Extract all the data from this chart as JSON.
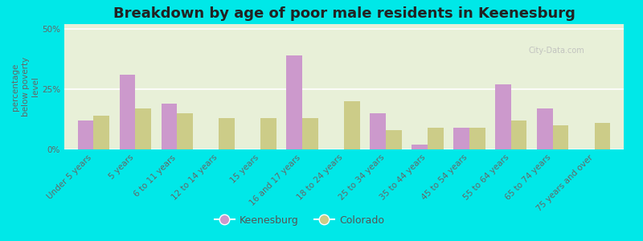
{
  "title": "Breakdown by age of poor male residents in Keenesburg",
  "ylabel": "percentage\nbelow poverty\nlevel",
  "categories": [
    "Under 5 years",
    "5 years",
    "6 to 11 years",
    "12 to 14 years",
    "15 years",
    "16 and 17 years",
    "18 to 24 years",
    "25 to 34 years",
    "35 to 44 years",
    "45 to 54 years",
    "55 to 64 years",
    "65 to 74 years",
    "75 years and over"
  ],
  "keenesburg": [
    12,
    31,
    19,
    0,
    0,
    39,
    0,
    15,
    2,
    9,
    27,
    17,
    0
  ],
  "colorado": [
    14,
    17,
    15,
    13,
    13,
    13,
    20,
    8,
    9,
    9,
    12,
    10,
    11
  ],
  "keenesburg_color": "#cc99cc",
  "colorado_color": "#cccc88",
  "outer_bg": "#00e8e8",
  "plot_bg_color": "#e8f0d8",
  "ylim": [
    0,
    52
  ],
  "yticks": [
    0,
    25,
    50
  ],
  "ytick_labels": [
    "0%",
    "25%",
    "50%"
  ],
  "bar_width": 0.38,
  "title_fontsize": 13,
  "label_fontsize": 7.5,
  "tick_fontsize": 7.5,
  "legend_fontsize": 9
}
